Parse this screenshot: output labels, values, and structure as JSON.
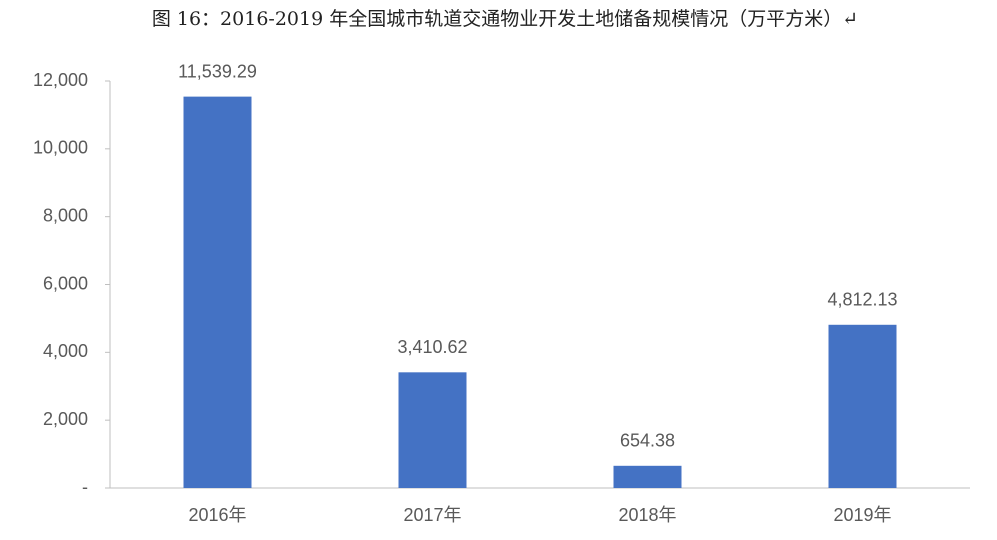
{
  "chart_data": {
    "type": "bar",
    "title": "图 16：2016-2019 年全国城市轨道交通物业开发土地储备规模情况（万平方米）↵",
    "categories": [
      "2016年",
      "2017年",
      "2018年",
      "2019年"
    ],
    "values": [
      11539.29,
      3410.62,
      654.38,
      4812.13
    ],
    "value_labels": [
      "11,539.29",
      "3,410.62",
      "654.38",
      "4,812.13"
    ],
    "color": "#4472c4",
    "ylim": [
      0,
      12000
    ],
    "yticks": [
      {
        "value": 0,
        "label": "-"
      },
      {
        "value": 2000,
        "label": "2,000"
      },
      {
        "value": 4000,
        "label": "4,000"
      },
      {
        "value": 6000,
        "label": "6,000"
      },
      {
        "value": 8000,
        "label": "8,000"
      },
      {
        "value": 10000,
        "label": "10,000"
      },
      {
        "value": 12000,
        "label": "12,000"
      }
    ],
    "grid": false
  }
}
